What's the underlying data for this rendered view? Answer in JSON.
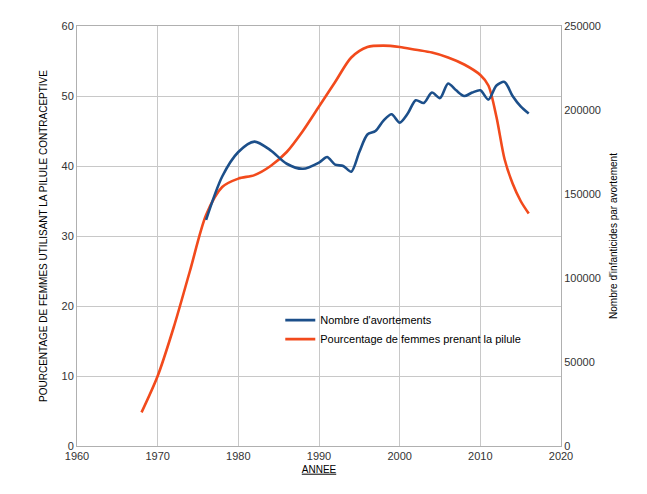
{
  "chart_data": {
    "type": "line",
    "x_label": "ANNEE",
    "y_label": "POURCENTAGE DE FEMMES UTILISANT LA PILULE CONTRACEPTIVE",
    "y2_label": "Nombre d'infanticides par avortement",
    "xlim": [
      1960,
      2020
    ],
    "xticks": [
      1960,
      1970,
      1980,
      1990,
      2000,
      2010,
      2020
    ],
    "ylim": [
      0,
      60
    ],
    "yticks": [
      0,
      10,
      20,
      30,
      40,
      50,
      60
    ],
    "y2lim": [
      0,
      250000
    ],
    "y2ticks": [
      0,
      50000,
      100000,
      150000,
      200000,
      250000
    ],
    "grid": true,
    "legend": "bottom",
    "series": [
      {
        "name": "Nombre d'avortements",
        "color": "#1c4f8a",
        "axis": "y2",
        "line_style": "smooth",
        "x": [
          1976,
          1978,
          1980,
          1982,
          1984,
          1986,
          1988,
          1990,
          1991,
          1992,
          1993,
          1994,
          1995,
          1996,
          1997,
          1998,
          1999,
          2000,
          2001,
          2002,
          2003,
          2004,
          2005,
          2006,
          2007,
          2008,
          2009,
          2010,
          2011,
          2012,
          2013,
          2014,
          2015,
          2016
        ],
        "values": [
          134600,
          160400,
          175000,
          181200,
          176000,
          168000,
          165000,
          168700,
          172000,
          167500,
          166700,
          163300,
          175000,
          185400,
          187500,
          193700,
          197500,
          192500,
          197900,
          205800,
          204200,
          210400,
          207100,
          215800,
          211700,
          208300,
          210400,
          211700,
          206200,
          214600,
          216700,
          208300,
          202100,
          197900
        ]
      },
      {
        "name": "Pourcentage de femmes prenant la pilule",
        "color": "#f24a1c",
        "axis": "y",
        "line_style": "smooth",
        "x": [
          1968,
          1970,
          1972,
          1974,
          1976,
          1978,
          1980,
          1982,
          1984,
          1986,
          1988,
          1990,
          1992,
          1994,
          1996,
          1998,
          2000,
          2002,
          2004,
          2006,
          2008,
          2010,
          2011,
          2012,
          2013,
          2014,
          2015,
          2016
        ],
        "values": [
          4.8,
          10,
          17,
          25,
          33,
          37,
          38.2,
          38.7,
          40,
          42,
          45,
          48.5,
          52,
          55.5,
          57,
          57.2,
          57,
          56.6,
          56.2,
          55.5,
          54.5,
          53,
          51.5,
          47,
          41,
          37.5,
          35,
          33.2
        ]
      }
    ]
  }
}
